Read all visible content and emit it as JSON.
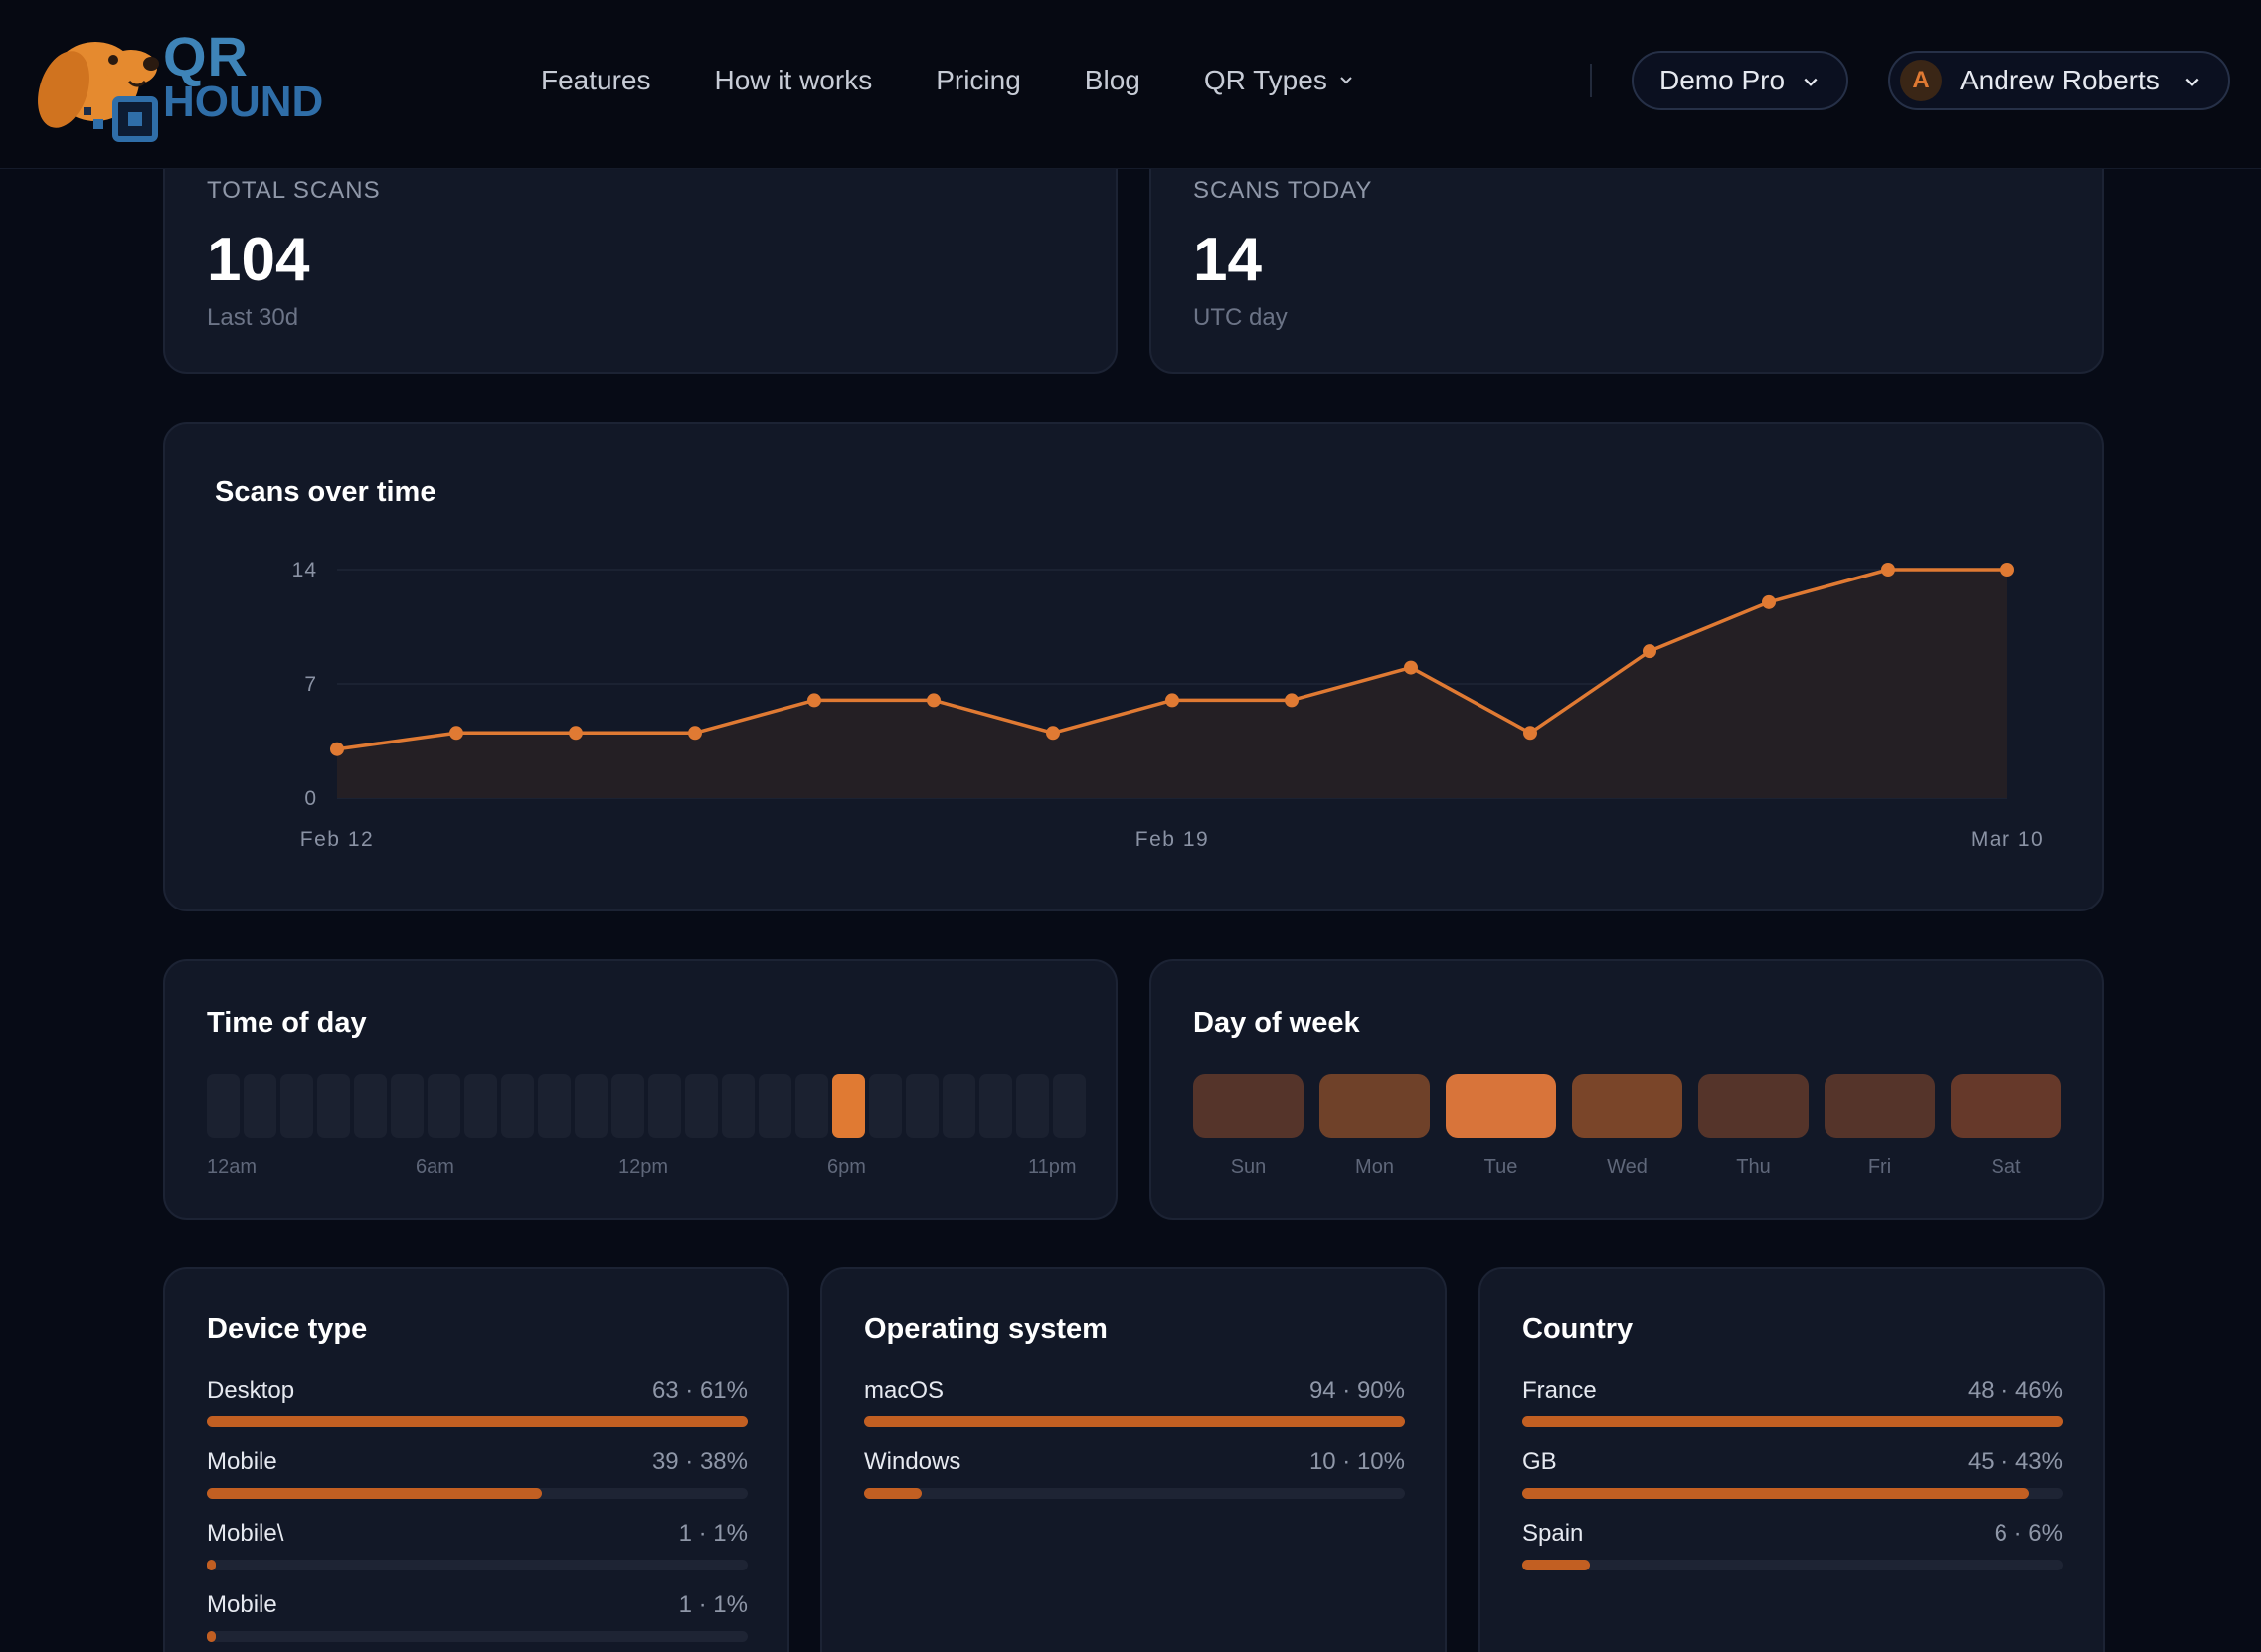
{
  "header": {
    "logo": {
      "line1": "QR",
      "line2": "HOUND"
    },
    "nav": [
      {
        "label": "Features",
        "has_dropdown": false
      },
      {
        "label": "How it works",
        "has_dropdown": false
      },
      {
        "label": "Pricing",
        "has_dropdown": false
      },
      {
        "label": "Blog",
        "has_dropdown": false
      },
      {
        "label": "QR Types",
        "has_dropdown": true
      }
    ],
    "plan_label": "Demo Pro",
    "user": {
      "initial": "A",
      "name": "Andrew Roberts"
    }
  },
  "stats": {
    "total": {
      "label": "TOTAL SCANS",
      "value": "104",
      "sub": "Last 30d"
    },
    "today": {
      "label": "SCANS TODAY",
      "value": "14",
      "sub": "UTC day"
    }
  },
  "scans_chart": {
    "title": "Scans over time"
  },
  "chart_data": {
    "type": "area",
    "x_tick_labels": [
      "Feb 12",
      "Feb 19",
      "Mar 10"
    ],
    "y_ticks": [
      0,
      7,
      14
    ],
    "ylim": [
      0,
      14
    ],
    "series": [
      {
        "values": [
          3,
          4,
          4,
          4,
          6,
          6,
          4,
          6,
          6,
          8,
          4,
          9,
          12,
          14,
          14
        ]
      }
    ],
    "grid": true,
    "line_color": "#e07a33",
    "fill_color": "#241f24"
  },
  "time_of_day": {
    "title": "Time of day",
    "hours_count": 24,
    "highlight_index": 17,
    "labels": [
      "12am",
      "6am",
      "12pm",
      "6pm",
      "11pm"
    ],
    "cell_color": "#1b2130",
    "highlight_color": "#e07a33"
  },
  "day_of_week": {
    "title": "Day of week",
    "days": [
      {
        "label": "Sun",
        "color": "#55342a"
      },
      {
        "label": "Mon",
        "color": "#6f4129"
      },
      {
        "label": "Tue",
        "color": "#d8743a"
      },
      {
        "label": "Wed",
        "color": "#7a4529"
      },
      {
        "label": "Thu",
        "color": "#55342a"
      },
      {
        "label": "Fri",
        "color": "#55342a"
      },
      {
        "label": "Sat",
        "color": "#66392a"
      }
    ]
  },
  "device_type": {
    "title": "Device type",
    "items": [
      {
        "label": "Desktop",
        "value": "63 · 61%",
        "fraction": 1.0
      },
      {
        "label": "Mobile",
        "value": "39 · 38%",
        "fraction": 0.62
      },
      {
        "label": "Mobile\\",
        "value": "1 · 1%",
        "fraction": 0.016
      },
      {
        "label": "Mobile",
        "value": "1 · 1%",
        "fraction": 0.016
      }
    ]
  },
  "operating_system": {
    "title": "Operating system",
    "items": [
      {
        "label": "macOS",
        "value": "94 · 90%",
        "fraction": 1.0
      },
      {
        "label": "Windows",
        "value": "10 · 10%",
        "fraction": 0.106
      }
    ]
  },
  "country": {
    "title": "Country",
    "items": [
      {
        "label": "France",
        "value": "48 · 46%",
        "fraction": 1.0
      },
      {
        "label": "GB",
        "value": "45 · 43%",
        "fraction": 0.937
      },
      {
        "label": "Spain",
        "value": "6 · 6%",
        "fraction": 0.125
      }
    ]
  },
  "colors": {
    "accent": "#e07a33",
    "bar": "#c25f22",
    "card_bg": "#121827",
    "page_bg": "#070b16"
  }
}
